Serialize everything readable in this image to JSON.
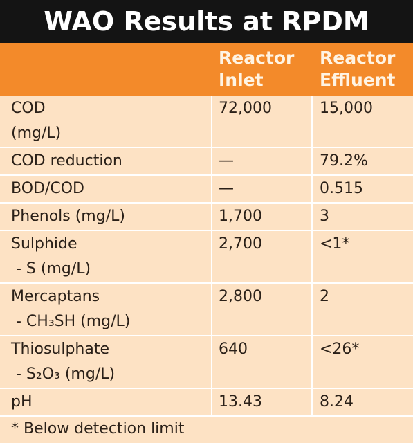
{
  "header": {
    "title": "WAO Results at RPDM"
  },
  "table": {
    "columns": [
      "Reactor Inlet",
      "Reactor Effluent"
    ],
    "rows": [
      {
        "label": [
          "COD",
          "(mg/L)"
        ],
        "cells": [
          "72,000",
          "15,000"
        ]
      },
      {
        "label": [
          "COD reduction"
        ],
        "cells": [
          "—",
          "79.2%"
        ]
      },
      {
        "label": [
          "BOD/COD"
        ],
        "cells": [
          "—",
          "0.515"
        ]
      },
      {
        "label": [
          "Phenols (mg/L)"
        ],
        "cells": [
          "1,700",
          "3"
        ]
      },
      {
        "label": [
          "Sulphide",
          " - S (mg/L)"
        ],
        "cells": [
          "2,700",
          "<1*"
        ]
      },
      {
        "label": [
          "Mercaptans",
          " - CH₃SH (mg/L)"
        ],
        "cells": [
          "2,800",
          "2"
        ]
      },
      {
        "label": [
          "Thiosulphate",
          " - S₂O₃ (mg/L)"
        ],
        "cells": [
          "640",
          "<26*"
        ]
      },
      {
        "label": [
          "pH"
        ],
        "cells": [
          "13.43",
          "8.24"
        ]
      }
    ],
    "footnote": "* Below detection limit"
  }
}
